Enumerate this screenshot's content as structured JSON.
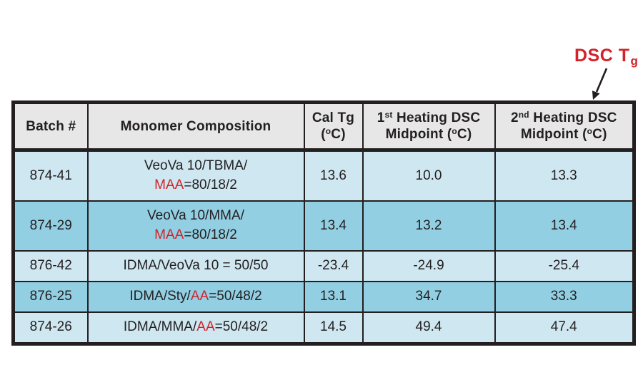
{
  "annotation": {
    "label": "DSC T",
    "subscript": "g",
    "color": "#d3232a"
  },
  "colors": {
    "row_light": "#cfe7f0",
    "row_dark": "#92cfe2",
    "header_bg": "#e7e7e7",
    "border": "#231f20",
    "red_text": "#d3232a"
  },
  "table": {
    "columns": [
      {
        "name": "batch",
        "segments": [
          {
            "t": "Batch #"
          }
        ]
      },
      {
        "name": "composition",
        "segments": [
          {
            "t": "Monomer Composition"
          }
        ]
      },
      {
        "name": "cal-tg",
        "segments": [
          {
            "t": "Cal Tg"
          },
          {
            "br": true
          },
          {
            "t": "("
          },
          {
            "t": "o",
            "sup": true
          },
          {
            "t": "C)"
          }
        ]
      },
      {
        "name": "first-heating",
        "segments": [
          {
            "t": "1"
          },
          {
            "t": "st",
            "sup": true
          },
          {
            "t": " Heating DSC"
          },
          {
            "br": true
          },
          {
            "t": "Midpoint ("
          },
          {
            "t": "o",
            "sup": true
          },
          {
            "t": "C)"
          }
        ]
      },
      {
        "name": "second-heating",
        "segments": [
          {
            "t": "2"
          },
          {
            "t": "nd",
            "sup": true
          },
          {
            "t": " Heating DSC"
          },
          {
            "br": true
          },
          {
            "t": "Midpoint ("
          },
          {
            "t": "o",
            "sup": true
          },
          {
            "t": "C)"
          }
        ]
      }
    ],
    "rows": [
      {
        "batch": "874-41",
        "shade": "light",
        "composition": [
          {
            "t": "VeoVa 10/TBMA/"
          },
          {
            "br": true
          },
          {
            "t": "MAA",
            "red": true
          },
          {
            "t": "=80/18/2"
          }
        ],
        "values": [
          "13.6",
          "10.0",
          "13.3"
        ]
      },
      {
        "batch": "874-29",
        "shade": "dark",
        "composition": [
          {
            "t": "VeoVa 10/MMA/"
          },
          {
            "br": true
          },
          {
            "t": "MAA",
            "red": true
          },
          {
            "t": "=80/18/2"
          }
        ],
        "values": [
          "13.4",
          "13.2",
          "13.4"
        ]
      },
      {
        "batch": "876-42",
        "shade": "light",
        "composition": [
          {
            "t": "IDMA/VeoVa 10 = 50/50"
          }
        ],
        "values": [
          "-23.4",
          "-24.9",
          "-25.4"
        ]
      },
      {
        "batch": "876-25",
        "shade": "dark",
        "composition": [
          {
            "t": "IDMA/Sty/"
          },
          {
            "t": "AA",
            "red": true
          },
          {
            "t": "=50/48/2"
          }
        ],
        "values": [
          "13.1",
          "34.7",
          "33.3"
        ]
      },
      {
        "batch": "874-26",
        "shade": "light",
        "composition": [
          {
            "t": "IDMA/MMA/"
          },
          {
            "t": "AA",
            "red": true
          },
          {
            "t": "=50/48/2"
          }
        ],
        "values": [
          "14.5",
          "49.4",
          "47.4"
        ]
      }
    ]
  },
  "chart_data": {
    "type": "table",
    "title": "",
    "annotation": "DSC Tg",
    "columns": [
      "Batch #",
      "Monomer Composition",
      "Cal Tg (°C)",
      "1st Heating DSC Midpoint (°C)",
      "2nd Heating DSC Midpoint (°C)"
    ],
    "rows": [
      [
        "874-41",
        "VeoVa 10/TBMA/MAA=80/18/2",
        13.6,
        10.0,
        13.3
      ],
      [
        "874-29",
        "VeoVa 10/MMA/MAA=80/18/2",
        13.4,
        13.2,
        13.4
      ],
      [
        "876-42",
        "IDMA/VeoVa 10 = 50/50",
        -23.4,
        -24.9,
        -25.4
      ],
      [
        "876-25",
        "IDMA/Sty/AA=50/48/2",
        13.1,
        34.7,
        33.3
      ],
      [
        "874-26",
        "IDMA/MMA/AA=50/48/2",
        14.5,
        49.4,
        47.4
      ]
    ]
  }
}
